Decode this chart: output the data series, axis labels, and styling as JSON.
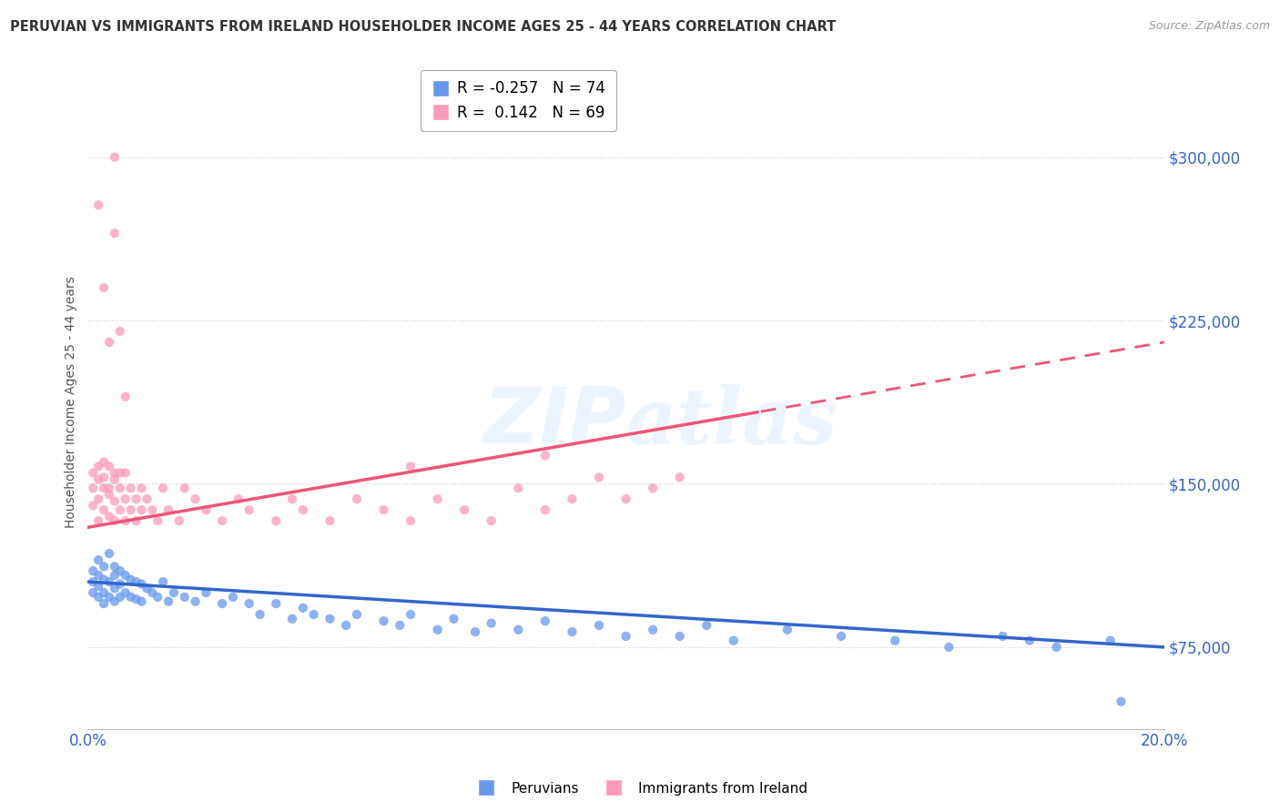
{
  "title": "PERUVIAN VS IMMIGRANTS FROM IRELAND HOUSEHOLDER INCOME AGES 25 - 44 YEARS CORRELATION CHART",
  "source": "Source: ZipAtlas.com",
  "ylabel": "Householder Income Ages 25 - 44 years",
  "legend1_label": "Peruvians",
  "legend2_label": "Immigrants from Ireland",
  "r1": -0.257,
  "n1": 74,
  "r2": 0.142,
  "n2": 69,
  "color_blue": "#6699EE",
  "color_pink": "#FF99BB",
  "color_blue_line": "#3366CC",
  "color_pink_line": "#EE5577",
  "color_axis_label": "#3366CC",
  "watermark": "ZIPatlas",
  "xmin": 0.0,
  "xmax": 0.2,
  "ymin": 37500,
  "ymax": 337500,
  "yticks": [
    75000,
    150000,
    225000,
    300000
  ],
  "blue_x": [
    0.001,
    0.001,
    0.001,
    0.002,
    0.002,
    0.002,
    0.002,
    0.003,
    0.003,
    0.003,
    0.003,
    0.004,
    0.004,
    0.004,
    0.005,
    0.005,
    0.005,
    0.005,
    0.006,
    0.006,
    0.006,
    0.007,
    0.007,
    0.008,
    0.008,
    0.009,
    0.009,
    0.01,
    0.01,
    0.011,
    0.012,
    0.013,
    0.014,
    0.015,
    0.016,
    0.018,
    0.02,
    0.022,
    0.025,
    0.027,
    0.03,
    0.032,
    0.035,
    0.038,
    0.04,
    0.042,
    0.045,
    0.048,
    0.05,
    0.055,
    0.058,
    0.06,
    0.065,
    0.068,
    0.072,
    0.075,
    0.08,
    0.085,
    0.09,
    0.095,
    0.1,
    0.105,
    0.11,
    0.115,
    0.12,
    0.13,
    0.14,
    0.15,
    0.16,
    0.17,
    0.175,
    0.18,
    0.19,
    0.192
  ],
  "blue_y": [
    110000,
    105000,
    100000,
    115000,
    108000,
    103000,
    98000,
    112000,
    106000,
    100000,
    95000,
    118000,
    105000,
    98000,
    112000,
    108000,
    102000,
    96000,
    110000,
    104000,
    98000,
    108000,
    100000,
    106000,
    98000,
    105000,
    97000,
    104000,
    96000,
    102000,
    100000,
    98000,
    105000,
    96000,
    100000,
    98000,
    96000,
    100000,
    95000,
    98000,
    95000,
    90000,
    95000,
    88000,
    93000,
    90000,
    88000,
    85000,
    90000,
    87000,
    85000,
    90000,
    83000,
    88000,
    82000,
    86000,
    83000,
    87000,
    82000,
    85000,
    80000,
    83000,
    80000,
    85000,
    78000,
    83000,
    80000,
    78000,
    75000,
    80000,
    78000,
    75000,
    78000,
    50000
  ],
  "pink_x": [
    0.001,
    0.001,
    0.001,
    0.002,
    0.002,
    0.002,
    0.002,
    0.003,
    0.003,
    0.003,
    0.003,
    0.004,
    0.004,
    0.004,
    0.004,
    0.005,
    0.005,
    0.005,
    0.005,
    0.006,
    0.006,
    0.006,
    0.007,
    0.007,
    0.007,
    0.008,
    0.008,
    0.009,
    0.009,
    0.01,
    0.01,
    0.011,
    0.012,
    0.013,
    0.014,
    0.015,
    0.017,
    0.018,
    0.02,
    0.022,
    0.025,
    0.028,
    0.03,
    0.035,
    0.038,
    0.04,
    0.045,
    0.05,
    0.055,
    0.06,
    0.065,
    0.07,
    0.075,
    0.08,
    0.085,
    0.09,
    0.095,
    0.1,
    0.105,
    0.11,
    0.002,
    0.003,
    0.004,
    0.005,
    0.006,
    0.007,
    0.06,
    0.085,
    0.005
  ],
  "pink_y": [
    148000,
    140000,
    155000,
    152000,
    143000,
    158000,
    133000,
    148000,
    160000,
    138000,
    153000,
    145000,
    158000,
    135000,
    148000,
    152000,
    142000,
    155000,
    133000,
    148000,
    138000,
    155000,
    143000,
    155000,
    133000,
    148000,
    138000,
    143000,
    133000,
    148000,
    138000,
    143000,
    138000,
    133000,
    148000,
    138000,
    133000,
    148000,
    143000,
    138000,
    133000,
    143000,
    138000,
    133000,
    143000,
    138000,
    133000,
    143000,
    138000,
    133000,
    143000,
    138000,
    133000,
    148000,
    138000,
    143000,
    153000,
    143000,
    148000,
    153000,
    278000,
    240000,
    215000,
    265000,
    220000,
    190000,
    158000,
    163000,
    300000
  ]
}
